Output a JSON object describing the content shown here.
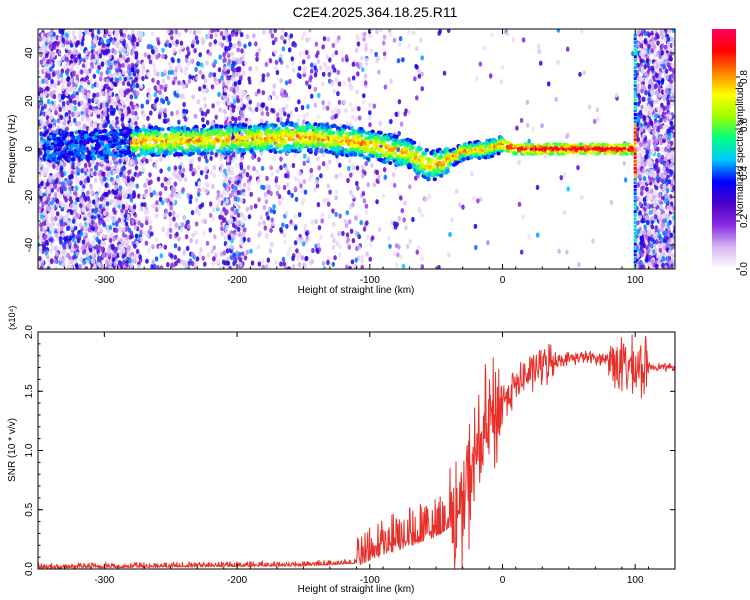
{
  "figure": {
    "title": "C2E4.2025.364.18.25.R11"
  },
  "chart_data": [
    {
      "type": "heatmap",
      "xlabel": "Height of straight line (km)",
      "ylabel": "Frequency (Hz)",
      "xlim": [
        -350,
        130
      ],
      "ylim": [
        -50,
        50
      ],
      "xticks": [
        -300,
        -200,
        -100,
        0,
        100
      ],
      "yticks": [
        -40,
        -20,
        0,
        20,
        40
      ],
      "colorbar": {
        "label": "Normalized spectral amplitude",
        "range": [
          0.0,
          1.0
        ],
        "ticks": [
          0.0,
          0.2,
          0.4,
          0.6,
          0.8
        ],
        "tick_labels": [
          "0.0",
          "0.2",
          "0.4",
          "0.6",
          "0.8"
        ],
        "colors": [
          "#ffffff",
          "#d8b8f0",
          "#8a2be2",
          "#4b00c8",
          "#0000ff",
          "#00c8ff",
          "#00ff80",
          "#a0ff00",
          "#ffff00",
          "#ff8000",
          "#ff0000",
          "#ff0060"
        ]
      },
      "ridge": [
        {
          "x": -330,
          "y": 1
        },
        {
          "x": -280,
          "y": 3
        },
        {
          "x": -200,
          "y": 4
        },
        {
          "x": -150,
          "y": 5
        },
        {
          "x": -110,
          "y": 3
        },
        {
          "x": -85,
          "y": 0
        },
        {
          "x": -70,
          "y": -2
        },
        {
          "x": -55,
          "y": -7
        },
        {
          "x": -45,
          "y": -6
        },
        {
          "x": -30,
          "y": -1
        },
        {
          "x": -10,
          "y": 0
        },
        {
          "x": 0,
          "y": 2
        },
        {
          "x": 10,
          "y": 0
        },
        {
          "x": 50,
          "y": 0
        },
        {
          "x": 99,
          "y": 0
        }
      ]
    },
    {
      "type": "line",
      "xlabel": "Height of straight line (km)",
      "ylabel": "SNR (10 * v/v)",
      "exponent_label": "(x10⁴)",
      "xlim": [
        -350,
        130
      ],
      "ylim": [
        0,
        2.0
      ],
      "xticks": [
        -300,
        -200,
        -100,
        0,
        100
      ],
      "yticks": [
        0.0,
        0.5,
        1.0,
        1.5,
        2.0
      ],
      "ytick_labels": [
        "0.0",
        "0.5",
        "1.0",
        "1.5",
        "2.0"
      ],
      "series": [
        {
          "name": "SNR",
          "color": "#e8302a",
          "x": [
            -350,
            -250,
            -150,
            -110,
            -90,
            -70,
            -50,
            -40,
            -30,
            -25,
            -20,
            -15,
            -10,
            -5,
            0,
            10,
            20,
            30,
            40,
            60,
            80,
            90,
            100,
            110,
            130
          ],
          "y": [
            0.01,
            0.02,
            0.03,
            0.05,
            0.15,
            0.22,
            0.3,
            0.38,
            0.5,
            0.75,
            0.95,
            1.1,
            1.22,
            1.3,
            1.42,
            1.55,
            1.65,
            1.72,
            1.76,
            1.79,
            1.77,
            1.72,
            1.68,
            1.71,
            1.7
          ]
        }
      ]
    }
  ]
}
